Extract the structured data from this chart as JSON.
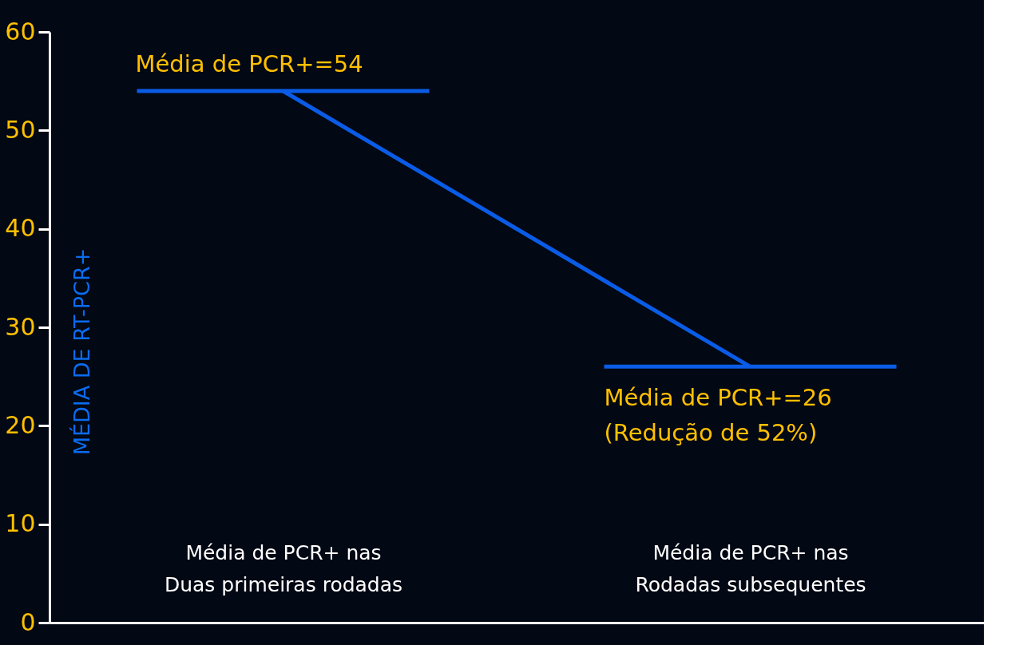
{
  "chart_data": {
    "type": "line",
    "categories": [
      "Média de PCR+ nas\nDuas primeiras rodadas",
      "Média de PCR+ nas\nRodadas subsequentes"
    ],
    "series": [
      {
        "color": "#0a5ce6",
        "values": [
          54,
          26
        ]
      }
    ],
    "ylabel": "MÉDIA DE RT-PCR+",
    "ylim": [
      0,
      60
    ],
    "yticks": [
      0,
      10,
      20,
      30,
      40,
      50,
      60
    ],
    "annotations": [
      "Média de PCR+=54",
      "Média de PCR+=26\n    (Redução de 52%)"
    ],
    "grid": false,
    "marker": "none",
    "line_style": "solid"
  }
}
